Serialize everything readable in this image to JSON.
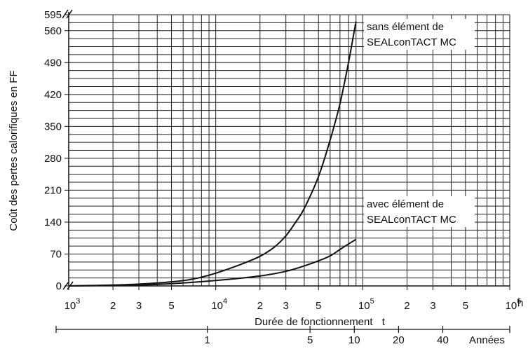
{
  "chart_data": {
    "type": "line",
    "ylabel": "Coût des pertes calorifiques en FF",
    "xlabel": "Durée de fonctionnement",
    "xlabel_symbol": "t",
    "x_unit": "h",
    "x_scale": "log",
    "xlim": [
      1000,
      1000000
    ],
    "ylim": [
      0,
      595
    ],
    "y_ticks": [
      0,
      70,
      140,
      210,
      280,
      350,
      420,
      490,
      560,
      595
    ],
    "x_tick_labels": [
      {
        "x": 1000,
        "base": "10",
        "exp": "3"
      },
      {
        "x": 2000,
        "base": "2",
        "exp": ""
      },
      {
        "x": 3000,
        "base": "3",
        "exp": ""
      },
      {
        "x": 5000,
        "base": "5",
        "exp": ""
      },
      {
        "x": 10000,
        "base": "10",
        "exp": "4"
      },
      {
        "x": 20000,
        "base": "2",
        "exp": ""
      },
      {
        "x": 30000,
        "base": "3",
        "exp": ""
      },
      {
        "x": 50000,
        "base": "5",
        "exp": ""
      },
      {
        "x": 100000,
        "base": "10",
        "exp": "5"
      },
      {
        "x": 200000,
        "base": "2",
        "exp": ""
      },
      {
        "x": 300000,
        "base": "3",
        "exp": ""
      },
      {
        "x": 500000,
        "base": "5",
        "exp": ""
      },
      {
        "x": 1000000,
        "base": "10",
        "exp": "6"
      }
    ],
    "years_axis": {
      "label": "Années",
      "ticks": [
        {
          "label": "1",
          "hours": 8760
        },
        {
          "label": "5",
          "hours": 43800
        },
        {
          "label": "10",
          "hours": 87600
        },
        {
          "label": "20",
          "hours": 175200
        },
        {
          "label": "40",
          "hours": 350400
        }
      ]
    },
    "grid": true,
    "series": [
      {
        "name": "sans élément de SEALconTACT MC",
        "points": [
          [
            1000,
            0
          ],
          [
            2000,
            2
          ],
          [
            3000,
            4
          ],
          [
            5000,
            9
          ],
          [
            7000,
            15
          ],
          [
            10000,
            28
          ],
          [
            15000,
            48
          ],
          [
            20000,
            65
          ],
          [
            25000,
            85
          ],
          [
            30000,
            110
          ],
          [
            35000,
            140
          ],
          [
            40000,
            170
          ],
          [
            50000,
            240
          ],
          [
            60000,
            320
          ],
          [
            70000,
            400
          ],
          [
            80000,
            490
          ],
          [
            87600,
            560
          ],
          [
            90000,
            580
          ]
        ]
      },
      {
        "name": "avec élément de SEALconTACT MC",
        "points": [
          [
            1000,
            0
          ],
          [
            3000,
            2
          ],
          [
            5000,
            5
          ],
          [
            10000,
            12
          ],
          [
            20000,
            22
          ],
          [
            30000,
            32
          ],
          [
            40000,
            44
          ],
          [
            50000,
            55
          ],
          [
            60000,
            66
          ],
          [
            70000,
            80
          ],
          [
            80000,
            92
          ],
          [
            90000,
            102
          ]
        ]
      }
    ],
    "annotations": [
      {
        "series": 0,
        "lines": [
          "sans élément de",
          "SEALconTACT MC"
        ]
      },
      {
        "series": 1,
        "lines": [
          "avec élément de",
          "SEALconTACT MC"
        ]
      }
    ]
  }
}
